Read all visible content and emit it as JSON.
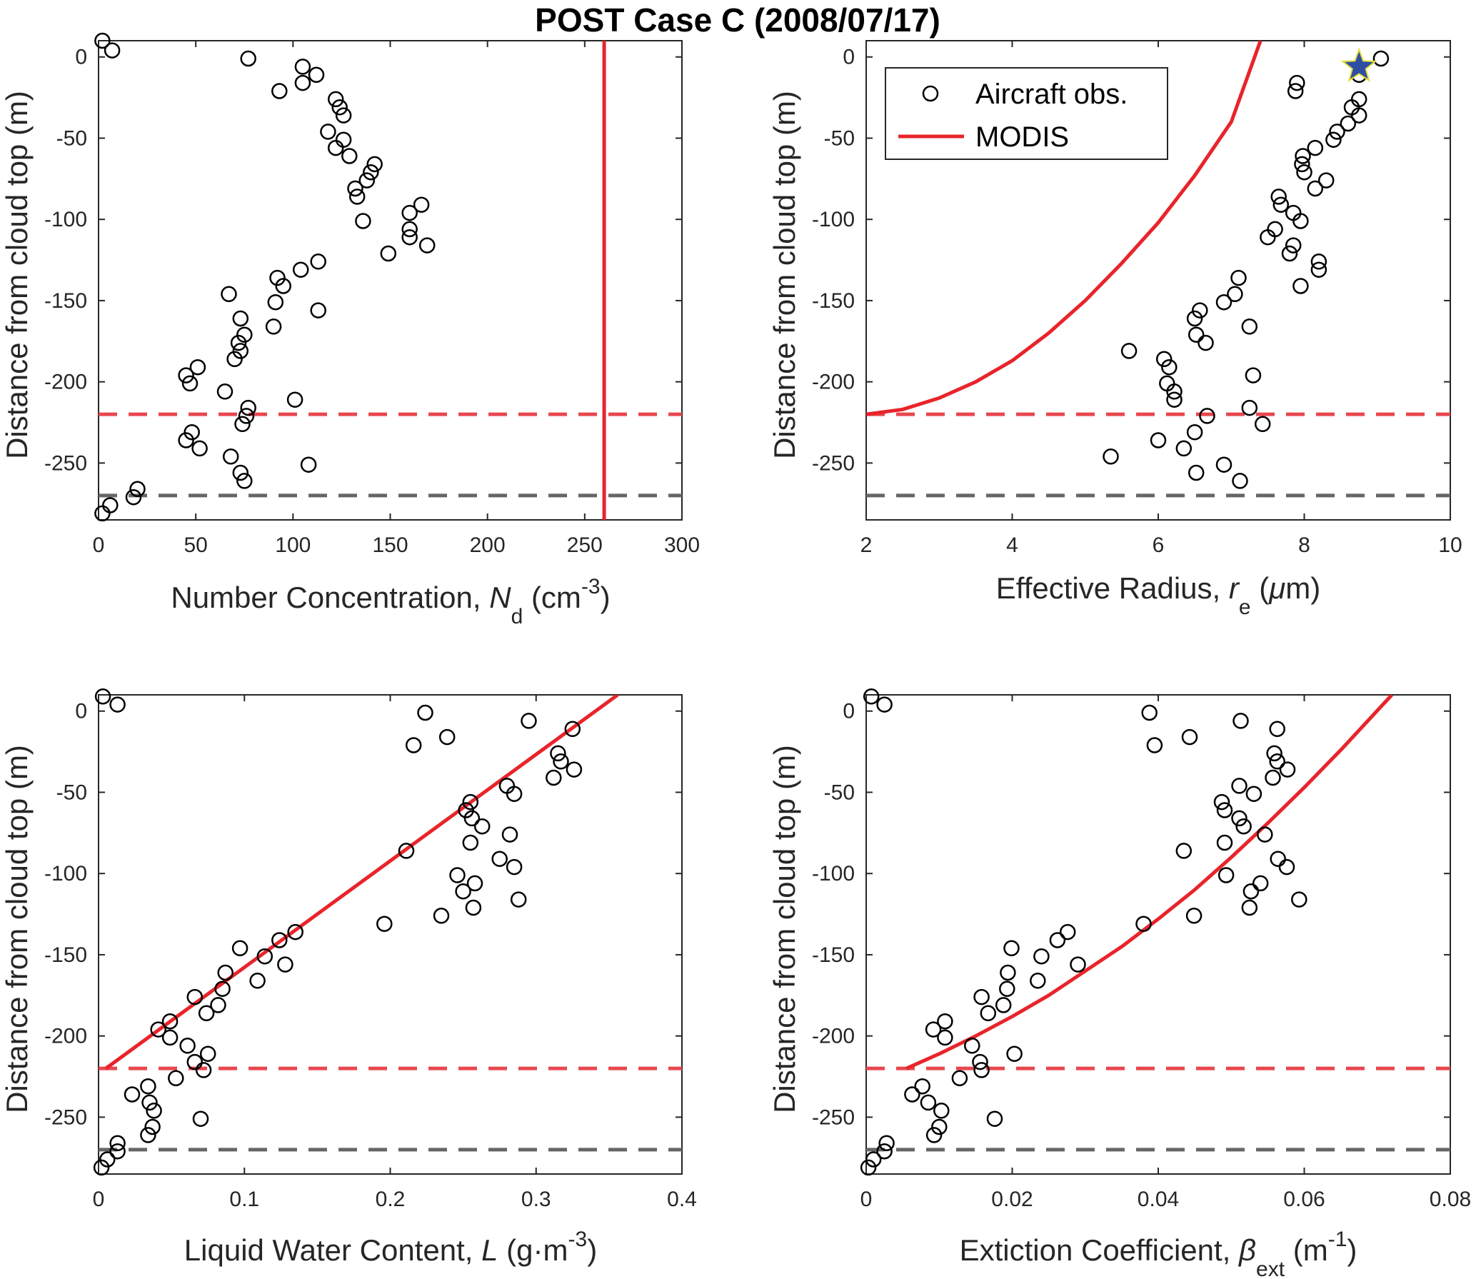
{
  "figure_title": "POST Case C (2008/07/17)",
  "colors": {
    "model": "#e8242b",
    "base_line": "#e8474f",
    "bottom_line": "#666666",
    "marker": "#000000",
    "star": "#2f4ea3",
    "star_edge": "#e6df3a"
  },
  "legend": {
    "obs": "Aircraft obs.",
    "model": "MODIS"
  },
  "axis_text": {
    "ylabel": "Distance from cloud top (m)",
    "p1": {
      "main": "Number Concentration,  ",
      "var": "N",
      "sub": "d",
      "unit_pre": " (cm",
      "sup": "-3",
      "unit_post": ")"
    },
    "p2": {
      "main": "Effective Radius,  ",
      "var": "r",
      "sub": "e",
      "unit_pre": " (",
      "mu": "μ",
      "unit_post": "m)"
    },
    "p3": {
      "main": "Liquid Water Content,  ",
      "var": "L",
      "unit": " (g·m",
      "sup": "-3",
      "unit_post": ")"
    },
    "p4": {
      "main": "Extiction Coefficient,  ",
      "var": "β",
      "sub": "ext",
      "unit_pre": " (m",
      "sup": "-1",
      "unit_post": ")"
    }
  },
  "chart_data": [
    {
      "type": "scatter",
      "title": "",
      "xlabel": "Number Concentration, N_d (cm^-3)",
      "ylabel": "Distance from cloud top (m)",
      "xlim": [
        0,
        300
      ],
      "ylim": [
        -285,
        10
      ],
      "xticks": [
        0,
        50,
        100,
        150,
        200,
        250,
        300
      ],
      "xtick_labels": [
        "0",
        "50",
        "100",
        "150",
        "200",
        "250",
        "300"
      ],
      "yticks": [
        -250,
        -200,
        -150,
        -100,
        -50,
        0
      ],
      "ytick_labels": [
        "-250",
        "-200",
        "-150",
        "-100",
        "-50",
        "0"
      ],
      "observations": [
        [
          2,
          10
        ],
        [
          7,
          4
        ],
        [
          77,
          -1
        ],
        [
          105,
          -6
        ],
        [
          112,
          -11
        ],
        [
          93,
          -21
        ],
        [
          105,
          -16
        ],
        [
          122,
          -26
        ],
        [
          124,
          -31
        ],
        [
          126,
          -36
        ],
        [
          118,
          -46
        ],
        [
          126,
          -51
        ],
        [
          122,
          -56
        ],
        [
          129,
          -61
        ],
        [
          142,
          -66
        ],
        [
          140,
          -71
        ],
        [
          138,
          -76
        ],
        [
          132,
          -81
        ],
        [
          133,
          -86
        ],
        [
          136,
          -101
        ],
        [
          166,
          -91
        ],
        [
          160,
          -96
        ],
        [
          160,
          -106
        ],
        [
          160,
          -111
        ],
        [
          169,
          -116
        ],
        [
          149,
          -121
        ],
        [
          113,
          -126
        ],
        [
          104,
          -131
        ],
        [
          92,
          -136
        ],
        [
          95,
          -141
        ],
        [
          67,
          -146
        ],
        [
          91,
          -151
        ],
        [
          113,
          -156
        ],
        [
          73,
          -161
        ],
        [
          90,
          -166
        ],
        [
          75,
          -171
        ],
        [
          72,
          -176
        ],
        [
          73,
          -181
        ],
        [
          70,
          -186
        ],
        [
          51,
          -191
        ],
        [
          45,
          -196
        ],
        [
          47,
          -201
        ],
        [
          65,
          -206
        ],
        [
          101,
          -211
        ],
        [
          77,
          -216
        ],
        [
          76,
          -221
        ],
        [
          74,
          -226
        ],
        [
          48,
          -231
        ],
        [
          45,
          -236
        ],
        [
          52,
          -241
        ],
        [
          68,
          -246
        ],
        [
          108,
          -251
        ],
        [
          73,
          -256
        ],
        [
          75,
          -261
        ],
        [
          20,
          -266
        ],
        [
          18,
          -271
        ],
        [
          6,
          -276
        ],
        [
          2,
          -281
        ]
      ],
      "model_lines": [
        {
          "name": "MODIS",
          "style": "vertical",
          "x": 260
        }
      ],
      "base_line": -220,
      "bottom_line": -270
    },
    {
      "type": "scatter",
      "title": "",
      "xlabel": "Effective Radius, r_e (μm)",
      "ylabel": "Distance from cloud top (m)",
      "xlim": [
        2,
        10
      ],
      "ylim": [
        -285,
        10
      ],
      "xticks": [
        2,
        4,
        6,
        8,
        10
      ],
      "xtick_labels": [
        "2",
        "4",
        "6",
        "8",
        "10"
      ],
      "yticks": [
        -250,
        -200,
        -150,
        -100,
        -50,
        0
      ],
      "ytick_labels": [
        "-250",
        "-200",
        "-150",
        "-100",
        "-50",
        "0"
      ],
      "legend": [
        "Aircraft obs.",
        "MODIS"
      ],
      "observations": [
        [
          9.05,
          -1
        ],
        [
          8.75,
          -11
        ],
        [
          7.9,
          -16
        ],
        [
          7.88,
          -21
        ],
        [
          8.75,
          -26
        ],
        [
          8.65,
          -31
        ],
        [
          8.75,
          -36
        ],
        [
          8.6,
          -41
        ],
        [
          8.45,
          -46
        ],
        [
          8.4,
          -51
        ],
        [
          8.15,
          -56
        ],
        [
          7.98,
          -61
        ],
        [
          7.97,
          -66
        ],
        [
          8.0,
          -71
        ],
        [
          8.3,
          -76
        ],
        [
          8.15,
          -81
        ],
        [
          7.65,
          -86
        ],
        [
          7.68,
          -91
        ],
        [
          7.85,
          -96
        ],
        [
          7.95,
          -101
        ],
        [
          7.6,
          -106
        ],
        [
          7.5,
          -111
        ],
        [
          7.85,
          -116
        ],
        [
          7.8,
          -121
        ],
        [
          8.2,
          -126
        ],
        [
          8.2,
          -131
        ],
        [
          7.1,
          -136
        ],
        [
          7.95,
          -141
        ],
        [
          7.05,
          -146
        ],
        [
          6.9,
          -151
        ],
        [
          6.57,
          -156
        ],
        [
          6.5,
          -161
        ],
        [
          7.25,
          -166
        ],
        [
          6.52,
          -171
        ],
        [
          6.65,
          -176
        ],
        [
          5.6,
          -181
        ],
        [
          6.08,
          -186
        ],
        [
          6.15,
          -191
        ],
        [
          7.3,
          -196
        ],
        [
          6.12,
          -201
        ],
        [
          6.22,
          -206
        ],
        [
          6.22,
          -211
        ],
        [
          7.25,
          -216
        ],
        [
          6.67,
          -221
        ],
        [
          7.43,
          -226
        ],
        [
          6.5,
          -231
        ],
        [
          6.0,
          -236
        ],
        [
          6.35,
          -241
        ],
        [
          5.35,
          -246
        ],
        [
          6.9,
          -251
        ],
        [
          6.52,
          -256
        ],
        [
          7.12,
          -261
        ]
      ],
      "star": [
        8.75,
        -6
      ],
      "model_curve": [
        [
          2.0,
          -220
        ],
        [
          2.5,
          -217
        ],
        [
          3.0,
          -210
        ],
        [
          3.5,
          -200
        ],
        [
          4.0,
          -187
        ],
        [
          4.5,
          -170
        ],
        [
          5.0,
          -150
        ],
        [
          5.5,
          -127
        ],
        [
          6.0,
          -102
        ],
        [
          6.5,
          -73
        ],
        [
          7.0,
          -40
        ],
        [
          7.4,
          10
        ]
      ],
      "base_line": -220,
      "bottom_line": -270
    },
    {
      "type": "scatter",
      "title": "",
      "xlabel": "Liquid Water Content, L (g·m^-3)",
      "ylabel": "Distance from cloud top (m)",
      "xlim": [
        0,
        0.4
      ],
      "ylim": [
        -285,
        10
      ],
      "xticks": [
        0,
        0.1,
        0.2,
        0.3,
        0.4
      ],
      "xtick_labels": [
        "0",
        "0.1",
        "0.2",
        "0.3",
        "0.4"
      ],
      "yticks": [
        -250,
        -200,
        -150,
        -100,
        -50,
        0
      ],
      "ytick_labels": [
        "-250",
        "-200",
        "-150",
        "-100",
        "-50",
        "0"
      ],
      "observations": [
        [
          0.003,
          9
        ],
        [
          0.013,
          4
        ],
        [
          0.224,
          -1
        ],
        [
          0.295,
          -6
        ],
        [
          0.325,
          -11
        ],
        [
          0.239,
          -16
        ],
        [
          0.216,
          -21
        ],
        [
          0.315,
          -26
        ],
        [
          0.317,
          -31
        ],
        [
          0.326,
          -36
        ],
        [
          0.312,
          -41
        ],
        [
          0.28,
          -46
        ],
        [
          0.285,
          -51
        ],
        [
          0.255,
          -56
        ],
        [
          0.252,
          -61
        ],
        [
          0.256,
          -66
        ],
        [
          0.263,
          -71
        ],
        [
          0.282,
          -76
        ],
        [
          0.255,
          -81
        ],
        [
          0.211,
          -86
        ],
        [
          0.275,
          -91
        ],
        [
          0.285,
          -96
        ],
        [
          0.246,
          -101
        ],
        [
          0.258,
          -106
        ],
        [
          0.25,
          -111
        ],
        [
          0.288,
          -116
        ],
        [
          0.257,
          -121
        ],
        [
          0.235,
          -126
        ],
        [
          0.196,
          -131
        ],
        [
          0.135,
          -136
        ],
        [
          0.124,
          -141
        ],
        [
          0.097,
          -146
        ],
        [
          0.114,
          -151
        ],
        [
          0.128,
          -156
        ],
        [
          0.087,
          -161
        ],
        [
          0.109,
          -166
        ],
        [
          0.085,
          -171
        ],
        [
          0.066,
          -176
        ],
        [
          0.082,
          -181
        ],
        [
          0.074,
          -186
        ],
        [
          0.049,
          -191
        ],
        [
          0.041,
          -196
        ],
        [
          0.049,
          -201
        ],
        [
          0.061,
          -206
        ],
        [
          0.075,
          -211
        ],
        [
          0.066,
          -216
        ],
        [
          0.072,
          -221
        ],
        [
          0.053,
          -226
        ],
        [
          0.034,
          -231
        ],
        [
          0.023,
          -236
        ],
        [
          0.035,
          -241
        ],
        [
          0.038,
          -246
        ],
        [
          0.07,
          -251
        ],
        [
          0.037,
          -256
        ],
        [
          0.034,
          -261
        ],
        [
          0.013,
          -266
        ],
        [
          0.013,
          -271
        ],
        [
          0.006,
          -276
        ],
        [
          0.002,
          -281
        ]
      ],
      "model_curve": [
        [
          0.005,
          -220
        ],
        [
          0.356,
          10
        ]
      ],
      "base_line": -220,
      "bottom_line": -270
    },
    {
      "type": "scatter",
      "title": "",
      "xlabel": "Extiction Coefficient, β_ext (m^-1)",
      "ylabel": "Distance from cloud top (m)",
      "xlim": [
        0,
        0.08
      ],
      "ylim": [
        -285,
        10
      ],
      "xticks": [
        0,
        0.02,
        0.04,
        0.06,
        0.08
      ],
      "xtick_labels": [
        "0",
        "0.02",
        "0.04",
        "0.06",
        "0.08"
      ],
      "yticks": [
        -250,
        -200,
        -150,
        -100,
        -50,
        0
      ],
      "ytick_labels": [
        "-250",
        "-200",
        "-150",
        "-100",
        "-50",
        "0"
      ],
      "observations": [
        [
          0.0007,
          9
        ],
        [
          0.0025,
          4
        ],
        [
          0.0388,
          -1
        ],
        [
          0.0513,
          -6
        ],
        [
          0.0563,
          -11
        ],
        [
          0.0443,
          -16
        ],
        [
          0.0395,
          -21
        ],
        [
          0.0559,
          -26
        ],
        [
          0.0563,
          -31
        ],
        [
          0.0577,
          -36
        ],
        [
          0.0557,
          -41
        ],
        [
          0.0511,
          -46
        ],
        [
          0.0531,
          -51
        ],
        [
          0.0487,
          -56
        ],
        [
          0.0491,
          -61
        ],
        [
          0.0511,
          -66
        ],
        [
          0.0517,
          -71
        ],
        [
          0.0546,
          -76
        ],
        [
          0.0491,
          -81
        ],
        [
          0.0435,
          -86
        ],
        [
          0.0564,
          -91
        ],
        [
          0.0576,
          -96
        ],
        [
          0.0493,
          -101
        ],
        [
          0.054,
          -106
        ],
        [
          0.0527,
          -111
        ],
        [
          0.0593,
          -116
        ],
        [
          0.0525,
          -121
        ],
        [
          0.0449,
          -126
        ],
        [
          0.038,
          -131
        ],
        [
          0.0276,
          -136
        ],
        [
          0.0262,
          -141
        ],
        [
          0.0199,
          -146
        ],
        [
          0.024,
          -151
        ],
        [
          0.029,
          -156
        ],
        [
          0.0194,
          -161
        ],
        [
          0.0235,
          -166
        ],
        [
          0.0193,
          -171
        ],
        [
          0.0158,
          -176
        ],
        [
          0.0188,
          -181
        ],
        [
          0.0167,
          -186
        ],
        [
          0.0108,
          -191
        ],
        [
          0.0092,
          -196
        ],
        [
          0.0108,
          -201
        ],
        [
          0.0145,
          -206
        ],
        [
          0.0203,
          -211
        ],
        [
          0.0156,
          -216
        ],
        [
          0.0158,
          -221
        ],
        [
          0.0128,
          -226
        ],
        [
          0.0077,
          -231
        ],
        [
          0.0063,
          -236
        ],
        [
          0.0085,
          -241
        ],
        [
          0.0103,
          -246
        ],
        [
          0.0176,
          -251
        ],
        [
          0.01,
          -256
        ],
        [
          0.0093,
          -261
        ],
        [
          0.0028,
          -266
        ],
        [
          0.0025,
          -271
        ],
        [
          0.001,
          -276
        ],
        [
          0.0003,
          -281
        ]
      ],
      "model_curve": [
        [
          0.0055,
          -220
        ],
        [
          0.01,
          -211
        ],
        [
          0.015,
          -200
        ],
        [
          0.02,
          -188
        ],
        [
          0.025,
          -175
        ],
        [
          0.03,
          -160
        ],
        [
          0.035,
          -145
        ],
        [
          0.04,
          -128
        ],
        [
          0.045,
          -110
        ],
        [
          0.05,
          -90
        ],
        [
          0.055,
          -69
        ],
        [
          0.06,
          -47
        ],
        [
          0.065,
          -24
        ],
        [
          0.072,
          10
        ]
      ],
      "base_line": -220,
      "bottom_line": -270
    }
  ]
}
